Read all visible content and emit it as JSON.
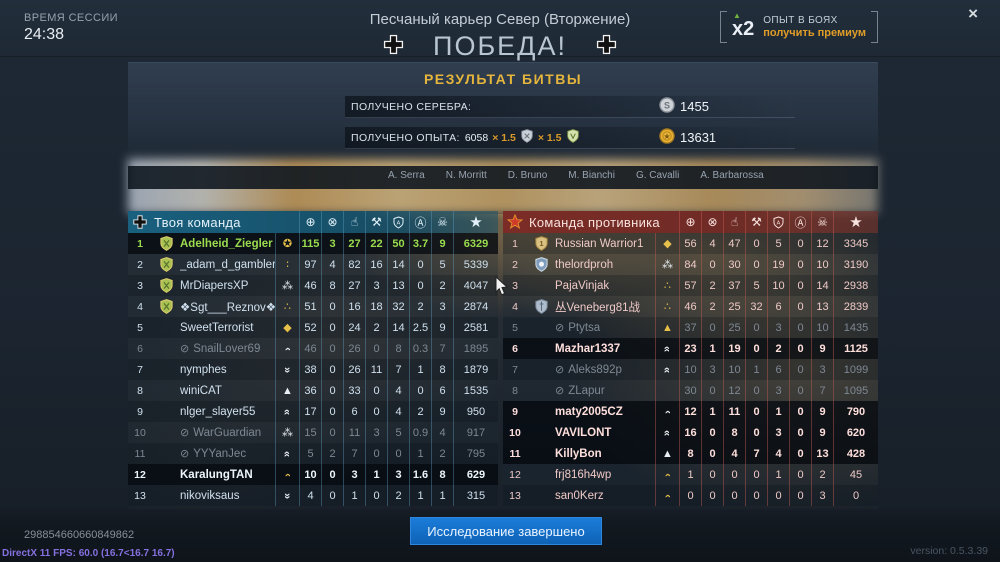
{
  "session": {
    "label": "ВРЕМЯ СЕССИИ",
    "time": "24:38"
  },
  "header": {
    "map_title": "Песчаный карьер Север (Вторжение)",
    "result": "ПОБЕДА!",
    "result_flag": "german-cross"
  },
  "premium": {
    "multiplier": "x2",
    "line1": "ОПЫТ В БОЯХ",
    "line2": "получить премиум"
  },
  "close_label": "×",
  "battle_result": {
    "title": "РЕЗУЛЬТАТ БИТВЫ",
    "silver_label": "ПОЛУЧЕНО СЕРЕБРА:",
    "silver_value": "1455",
    "exp_label": "ПОЛУЧЕНО ОПЫТА:",
    "exp_base": "6058",
    "exp_mult1": "× 1.5",
    "exp_mult2": "× 1.5",
    "exp_value": "13631"
  },
  "crew_names": [
    "A. Serra",
    "N. Morritt",
    "D. Bruno",
    "M. Bianchi",
    "G. Cavalli",
    "A. Barbarossa"
  ],
  "colors": {
    "gold_accent": "#e5b53c",
    "ally_header": "#19607f",
    "enemy_header": "#7c2c26",
    "self_green": "#9bdc4f",
    "button_blue": "#1272cf",
    "premium_orange": "#e09d27"
  },
  "scoreboard": {
    "stat_icons": [
      "crosshair",
      "tank-destroyed",
      "assist-hand",
      "repair-wrench",
      "capture-shield",
      "award-circle-a",
      "skull",
      "score-star"
    ],
    "teams": [
      {
        "name": "Твоя команда",
        "side": "ally",
        "flag": "german-cross",
        "rows": [
          {
            "rank": "1",
            "name": "Adelheid_Ziegler",
            "emblem": "ally",
            "class_icon": "wreath",
            "self": true,
            "highlight": true,
            "stats": [
              "115",
              "3",
              "27",
              "22",
              "50",
              "3.7",
              "9",
              "6329"
            ]
          },
          {
            "rank": "2",
            "name": "_adam_d_gambler_",
            "emblem": "ally",
            "class_icon": "dots2",
            "stats": [
              "97",
              "4",
              "82",
              "16",
              "14",
              "0",
              "5",
              "5339"
            ]
          },
          {
            "rank": "3",
            "name": "MrDiapersXP",
            "emblem": "ally",
            "class_icon": "cluster",
            "stats": [
              "46",
              "8",
              "27",
              "3",
              "13",
              "0",
              "2",
              "4047"
            ]
          },
          {
            "rank": "4",
            "name": "❖Sgt___Reznov❖",
            "emblem": "ally",
            "class_icon": "dots3",
            "stats": [
              "51",
              "0",
              "16",
              "18",
              "32",
              "2",
              "3",
              "2874"
            ]
          },
          {
            "rank": "5",
            "name": "SweetTerrorist",
            "class_icon": "diamond",
            "stats": [
              "52",
              "0",
              "24",
              "2",
              "14",
              "2.5",
              "9",
              "2581"
            ]
          },
          {
            "rank": "6",
            "name": "SnailLover69",
            "disconnected": true,
            "dim": true,
            "class_icon": "chev1",
            "stats": [
              "46",
              "0",
              "26",
              "0",
              "8",
              "0.3",
              "7",
              "1895"
            ]
          },
          {
            "rank": "7",
            "name": "nymphes",
            "class_icon": "down2",
            "stats": [
              "38",
              "0",
              "26",
              "11",
              "7",
              "1",
              "8",
              "1879"
            ]
          },
          {
            "rank": "8",
            "name": "winiCAT",
            "class_icon": "arrow",
            "stats": [
              "36",
              "0",
              "33",
              "0",
              "4",
              "0",
              "6",
              "1535"
            ]
          },
          {
            "rank": "9",
            "name": "nlger_slayer55",
            "class_icon": "chev2",
            "stats": [
              "17",
              "0",
              "6",
              "0",
              "4",
              "2",
              "9",
              "950"
            ]
          },
          {
            "rank": "10",
            "name": "WarGuardian",
            "disconnected": true,
            "dim": true,
            "class_icon": "cluster",
            "stats": [
              "15",
              "0",
              "11",
              "3",
              "5",
              "0.9",
              "4",
              "917"
            ]
          },
          {
            "rank": "11",
            "name": "YYYanJec",
            "disconnected": true,
            "dim": true,
            "class_icon": "chev3",
            "stats": [
              "5",
              "2",
              "7",
              "0",
              "0",
              "1",
              "2",
              "795"
            ]
          },
          {
            "rank": "12",
            "name": "KaralungTAN",
            "class_icon": "chev1g",
            "highlight": true,
            "stats": [
              "10",
              "0",
              "3",
              "1",
              "3",
              "1.6",
              "8",
              "629"
            ]
          },
          {
            "rank": "13",
            "name": "nikoviksaus",
            "class_icon": "down2",
            "stats": [
              "4",
              "0",
              "1",
              "0",
              "2",
              "1",
              "1",
              "315"
            ]
          }
        ]
      },
      {
        "name": "Команда противника",
        "side": "enemy",
        "flag": "red-star",
        "rows": [
          {
            "rank": "1",
            "name": "Russian Warrior1",
            "emblem": "crown1",
            "class_icon": "diamond",
            "stats": [
              "56",
              "4",
              "47",
              "0",
              "5",
              "0",
              "12",
              "3345"
            ]
          },
          {
            "rank": "2",
            "name": "thelordproh",
            "emblem": "star",
            "class_icon": "cluster",
            "stats": [
              "84",
              "0",
              "30",
              "0",
              "19",
              "0",
              "10",
              "3190"
            ]
          },
          {
            "rank": "3",
            "name": "PajaVinjak",
            "class_icon": "dots3",
            "stats": [
              "57",
              "2",
              "37",
              "5",
              "10",
              "0",
              "14",
              "2938"
            ]
          },
          {
            "rank": "4",
            "name": "丛Veneberg81战",
            "emblem": "sword",
            "class_icon": "dots3",
            "stats": [
              "46",
              "2",
              "25",
              "32",
              "6",
              "0",
              "13",
              "2839"
            ]
          },
          {
            "rank": "5",
            "name": "Ptytsa",
            "disconnected": true,
            "dim": true,
            "class_icon": "arrowg",
            "stats": [
              "37",
              "0",
              "25",
              "0",
              "3",
              "0",
              "10",
              "1435"
            ]
          },
          {
            "rank": "6",
            "name": "Mazhar1337",
            "class_icon": "chev2",
            "highlight": true,
            "stats": [
              "23",
              "1",
              "19",
              "0",
              "2",
              "0",
              "9",
              "1125"
            ]
          },
          {
            "rank": "7",
            "name": "Aleks892p",
            "disconnected": true,
            "dim": true,
            "class_icon": "chev2",
            "stats": [
              "10",
              "3",
              "10",
              "1",
              "6",
              "0",
              "3",
              "1099"
            ]
          },
          {
            "rank": "8",
            "name": "ZLapur",
            "disconnected": true,
            "dim": true,
            "stats": [
              "30",
              "0",
              "12",
              "0",
              "3",
              "0",
              "7",
              "1095"
            ]
          },
          {
            "rank": "9",
            "name": "maty2005CZ",
            "class_icon": "chev1",
            "highlight": true,
            "stats": [
              "12",
              "1",
              "11",
              "0",
              "1",
              "0",
              "9",
              "790"
            ]
          },
          {
            "rank": "10",
            "name": "VAVILONT",
            "class_icon": "chev2",
            "highlight": true,
            "stats": [
              "16",
              "0",
              "8",
              "0",
              "3",
              "0",
              "9",
              "620"
            ]
          },
          {
            "rank": "11",
            "name": "KillyBon",
            "class_icon": "arrow",
            "highlight": true,
            "stats": [
              "8",
              "0",
              "4",
              "7",
              "4",
              "0",
              "13",
              "428"
            ]
          },
          {
            "rank": "12",
            "name": "frj816h4wp",
            "class_icon": "chev1g",
            "stats": [
              "1",
              "0",
              "0",
              "0",
              "1",
              "0",
              "2",
              "45"
            ]
          },
          {
            "rank": "13",
            "name": "san0Kerz",
            "class_icon": "chev1g",
            "stats": [
              "0",
              "0",
              "0",
              "0",
              "0",
              "0",
              "3",
              "0"
            ]
          }
        ]
      }
    ]
  },
  "footer": {
    "button_label": "Исследование завершено",
    "battle_id": "298854660660849862",
    "debug_line": "DirectX 11 FPS: 60.0 (16.7<16.7 16.7)",
    "version": "version: 0.5.3.39"
  }
}
